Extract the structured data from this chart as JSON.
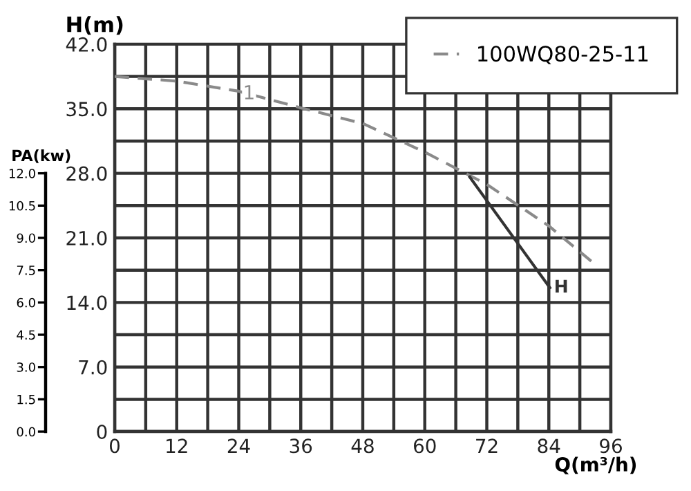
{
  "chart_data": {
    "type": "line",
    "xlabel": "Q(m³/h)",
    "ylabel": "H(m)",
    "y2label": "PA(kw)",
    "x": [
      0,
      12,
      24,
      36,
      48,
      60,
      72,
      84,
      92.8
    ],
    "series": [
      {
        "name": "100WQ80-25-11",
        "color": "#8a8a8a",
        "line_style": "dashed",
        "values": [
          38.5,
          38,
          36.9,
          35.1,
          33.4,
          30.3,
          26.8,
          22.3,
          18.2
        ]
      },
      {
        "name": "H",
        "color": "#333333",
        "line_style": "solid",
        "x": [
          68.7,
          84.2
        ],
        "values": [
          27.6,
          15.6
        ]
      }
    ],
    "annotations": [
      {
        "text": "1",
        "x": 26,
        "y": 36.6
      }
    ],
    "xlim": [
      0,
      96
    ],
    "ylim": [
      0,
      42
    ],
    "y2lim": [
      0,
      18
    ],
    "xticks": [
      0,
      {
        "value": 6,
        "label": null
      },
      12,
      {
        "value": 18,
        "label": null
      },
      24,
      {
        "value": 30,
        "label": null
      },
      36,
      {
        "value": 42,
        "label": null
      },
      48,
      {
        "value": 54,
        "label": null
      },
      60,
      {
        "value": 66,
        "label": null
      },
      72,
      {
        "value": 78,
        "label": null
      },
      84,
      {
        "value": 90,
        "label": null
      },
      96
    ],
    "yticks": [
      0,
      {
        "value": 3.5,
        "label": null
      },
      {
        "value": 7,
        "label": "7.0"
      },
      {
        "value": 10.5,
        "label": null
      },
      {
        "value": 14,
        "label": "14.0"
      },
      {
        "value": 17.5,
        "label": null
      },
      {
        "value": 21,
        "label": "21.0"
      },
      {
        "value": 24.5,
        "label": null
      },
      {
        "value": 28,
        "label": "28.0"
      },
      {
        "value": 31.5,
        "label": null
      },
      {
        "value": 35,
        "label": "35.0"
      },
      {
        "value": 38.5,
        "label": null
      },
      {
        "value": 42,
        "label": "42.0"
      }
    ],
    "y2ticks": [
      {
        "value": 0,
        "label": "0.0"
      },
      1.5,
      {
        "value": 3,
        "label": "3.0"
      },
      4.5,
      {
        "value": 6,
        "label": "6.0"
      },
      7.5,
      {
        "value": 9,
        "label": "9.0"
      },
      10.5,
      {
        "value": 12,
        "label": "12.0"
      }
    ],
    "grid": true,
    "legend": "top right",
    "marker": "none"
  }
}
